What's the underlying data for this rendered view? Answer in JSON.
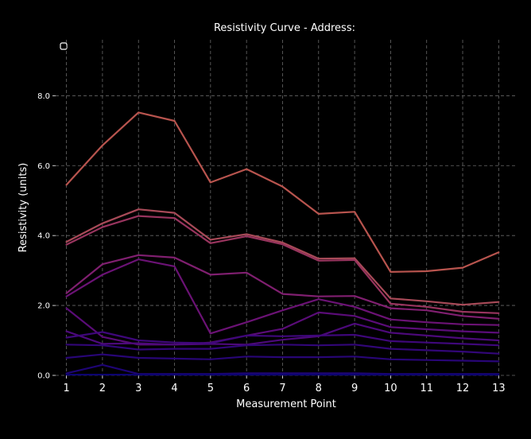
{
  "chart_data": {
    "type": "line",
    "title": "Resistivity Curve - Address:",
    "xlabel": "Measurement Point",
    "ylabel": "Resistivity (units)",
    "x": [
      1,
      2,
      3,
      4,
      5,
      6,
      7,
      8,
      9,
      10,
      11,
      12,
      13
    ],
    "xlim": [
      0.7,
      13.5
    ],
    "ylim": [
      0,
      9.6
    ],
    "yticks": [
      0.0,
      2.0,
      4.0,
      6.0,
      8.0
    ],
    "ytick_labels": [
      "0.0",
      "2.0",
      "4.0",
      "6.0",
      "8.0"
    ],
    "grid": true,
    "legend": "top-left",
    "background": "#000000",
    "series": [
      {
        "color": "#b8544e",
        "values": [
          5.45,
          6.58,
          7.52,
          7.28,
          5.52,
          5.9,
          5.4,
          4.62,
          4.68,
          2.96,
          2.98,
          3.08,
          3.52
        ]
      },
      {
        "color": "#a84a58",
        "values": [
          3.82,
          4.35,
          4.75,
          4.65,
          3.88,
          4.04,
          3.8,
          3.34,
          3.35,
          2.2,
          2.12,
          2.02,
          2.1
        ]
      },
      {
        "color": "#98345e",
        "values": [
          3.74,
          4.24,
          4.56,
          4.5,
          3.78,
          3.98,
          3.75,
          3.28,
          3.3,
          2.05,
          1.96,
          1.82,
          1.78
        ]
      },
      {
        "color": "#801f70",
        "values": [
          2.35,
          3.18,
          3.44,
          3.37,
          2.88,
          2.94,
          2.33,
          2.26,
          2.27,
          1.92,
          1.86,
          1.7,
          1.62
        ]
      },
      {
        "color": "#6b1275",
        "values": [
          2.26,
          2.88,
          3.32,
          3.12,
          1.2,
          1.52,
          1.86,
          2.18,
          1.96,
          1.6,
          1.52,
          1.46,
          1.44
        ]
      },
      {
        "color": "#5a0c78",
        "values": [
          1.92,
          1.1,
          0.88,
          0.88,
          0.94,
          1.14,
          1.33,
          1.8,
          1.7,
          1.38,
          1.32,
          1.26,
          1.22
        ]
      },
      {
        "color": "#4c097a",
        "values": [
          1.26,
          0.9,
          0.92,
          0.88,
          0.9,
          0.88,
          1.02,
          1.12,
          1.48,
          1.22,
          1.14,
          1.06,
          1.0
        ]
      },
      {
        "color": "#3e077a",
        "values": [
          1.08,
          1.24,
          1.0,
          0.94,
          0.92,
          1.14,
          1.12,
          1.14,
          1.16,
          0.98,
          0.94,
          0.9,
          0.86
        ]
      },
      {
        "color": "#320678",
        "values": [
          0.88,
          0.86,
          0.74,
          0.76,
          0.76,
          0.86,
          0.88,
          0.86,
          0.88,
          0.76,
          0.72,
          0.68,
          0.62
        ]
      },
      {
        "color": "#280576",
        "values": [
          0.5,
          0.6,
          0.5,
          0.48,
          0.46,
          0.54,
          0.52,
          0.52,
          0.54,
          0.46,
          0.44,
          0.42,
          0.4
        ]
      },
      {
        "color": "#1e0474",
        "values": [
          0.06,
          0.3,
          0.04,
          0.04,
          0.04,
          0.06,
          0.06,
          0.06,
          0.06,
          0.04,
          0.04,
          0.04,
          0.04
        ]
      },
      {
        "color": "#0c0470",
        "values": [
          0.02,
          0.02,
          0.02,
          0.02,
          0.02,
          0.02,
          0.02,
          0.02,
          0.02,
          0.02,
          0.02,
          0.02,
          0.02
        ]
      }
    ]
  }
}
